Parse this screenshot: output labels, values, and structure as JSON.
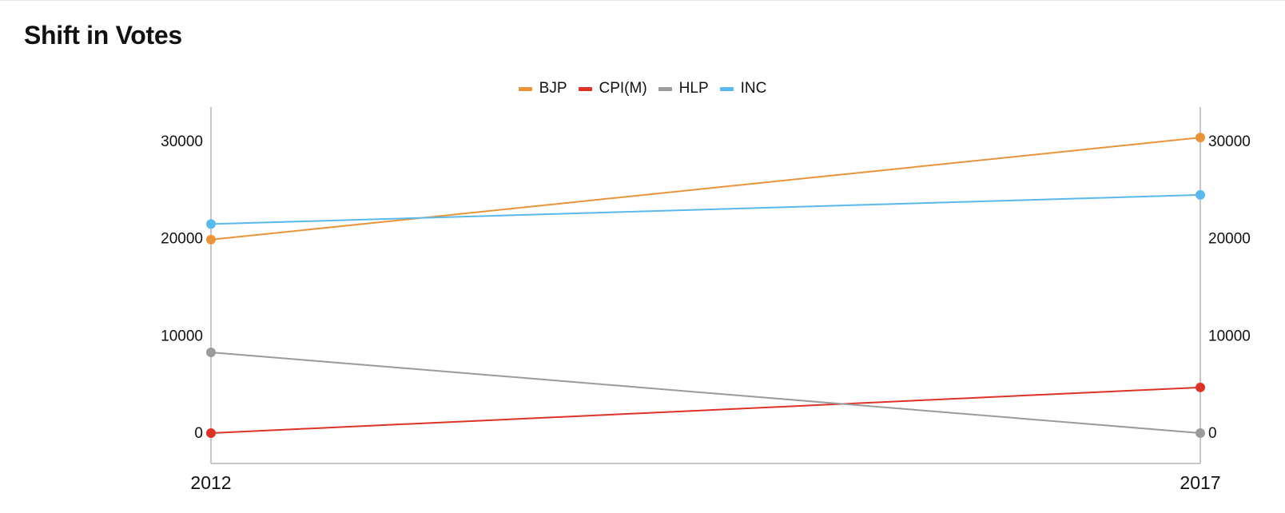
{
  "chart_data": {
    "type": "line",
    "title": "Shift in Votes",
    "categories": [
      "2012",
      "2017"
    ],
    "series": [
      {
        "name": "BJP",
        "color": "#e8943a",
        "values": [
          19900,
          30400
        ]
      },
      {
        "name": "CPI(M)",
        "color": "#dd3327",
        "values": [
          0,
          4700
        ]
      },
      {
        "name": "HLP",
        "color": "#9b9b9b",
        "values": [
          8300,
          0
        ]
      },
      {
        "name": "INC",
        "color": "#5ab9ec",
        "values": [
          21500,
          24500
        ]
      }
    ],
    "yticks": [
      "0",
      "10000",
      "20000",
      "30000"
    ],
    "ylim": [
      0,
      30000
    ],
    "legend_position": "top-center",
    "grid": false,
    "axis_color": "#b3b3b3"
  }
}
